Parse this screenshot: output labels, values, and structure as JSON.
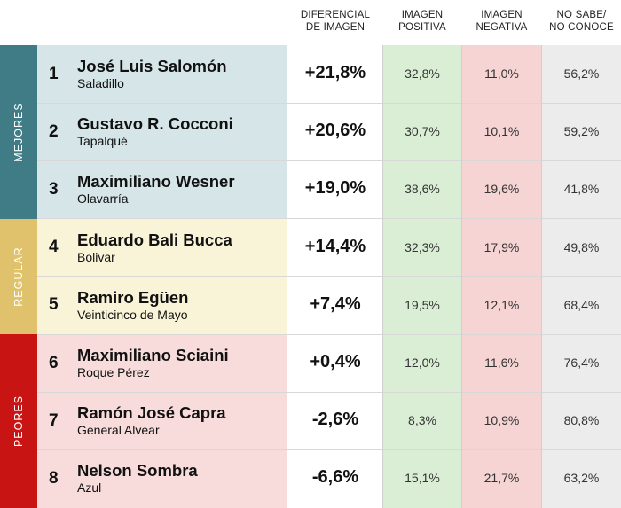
{
  "headers": {
    "diff": "DIFERENCIAL\nDE IMAGEN",
    "pos": "IMAGEN\nPOSITIVA",
    "neg": "IMAGEN\nNEGATIVA",
    "ns": "NO SABE/\nNO CONOCE"
  },
  "groups": [
    {
      "label": "MEJORES",
      "color": "#3f7c86"
    },
    {
      "label": "REGULAR",
      "color": "#dfc26b"
    },
    {
      "label": "PEORES",
      "color": "#c91414"
    }
  ],
  "colors": {
    "mejores_bg": "#d5e5e8",
    "regular_bg": "#f9f4d7",
    "peores_bg": "#f7dcdb",
    "positive_bg": "#d9eed5",
    "negative_bg": "#f6d4d4",
    "noconoce_bg": "#ececec"
  },
  "chart_data": {
    "type": "table",
    "columns": [
      "DIFERENCIAL DE IMAGEN",
      "IMAGEN POSITIVA",
      "IMAGEN NEGATIVA",
      "NO SABE/ NO CONOCE"
    ],
    "rows": [
      {
        "rank": "1",
        "name": "José Luis Salomón",
        "town": "Saladillo",
        "diff": "+21,8%",
        "pos": "32,8%",
        "neg": "11,0%",
        "ns": "56,2%",
        "group": 0
      },
      {
        "rank": "2",
        "name": "Gustavo R. Cocconi",
        "town": "Tapalqué",
        "diff": "+20,6%",
        "pos": "30,7%",
        "neg": "10,1%",
        "ns": "59,2%",
        "group": 0
      },
      {
        "rank": "3",
        "name": "Maximiliano Wesner",
        "town": "Olavarría",
        "diff": "+19,0%",
        "pos": "38,6%",
        "neg": "19,6%",
        "ns": "41,8%",
        "group": 0
      },
      {
        "rank": "4",
        "name": "Eduardo Bali Bucca",
        "town": "Bolivar",
        "diff": "+14,4%",
        "pos": "32,3%",
        "neg": "17,9%",
        "ns": "49,8%",
        "group": 1
      },
      {
        "rank": "5",
        "name": "Ramiro Egüen",
        "town": "Veinticinco de Mayo",
        "diff": "+7,4%",
        "pos": "19,5%",
        "neg": "12,1%",
        "ns": "68,4%",
        "group": 1
      },
      {
        "rank": "6",
        "name": "Maximiliano Sciaini",
        "town": "Roque Pérez",
        "diff": "+0,4%",
        "pos": "12,0%",
        "neg": "11,6%",
        "ns": "76,4%",
        "group": 2
      },
      {
        "rank": "7",
        "name": "Ramón José Capra",
        "town": "General Alvear",
        "diff": "-2,6%",
        "pos": "8,3%",
        "neg": "10,9%",
        "ns": "80,8%",
        "group": 2
      },
      {
        "rank": "8",
        "name": "Nelson Sombra",
        "town": "Azul",
        "diff": "-6,6%",
        "pos": "15,1%",
        "neg": "21,7%",
        "ns": "63,2%",
        "group": 2
      }
    ]
  }
}
